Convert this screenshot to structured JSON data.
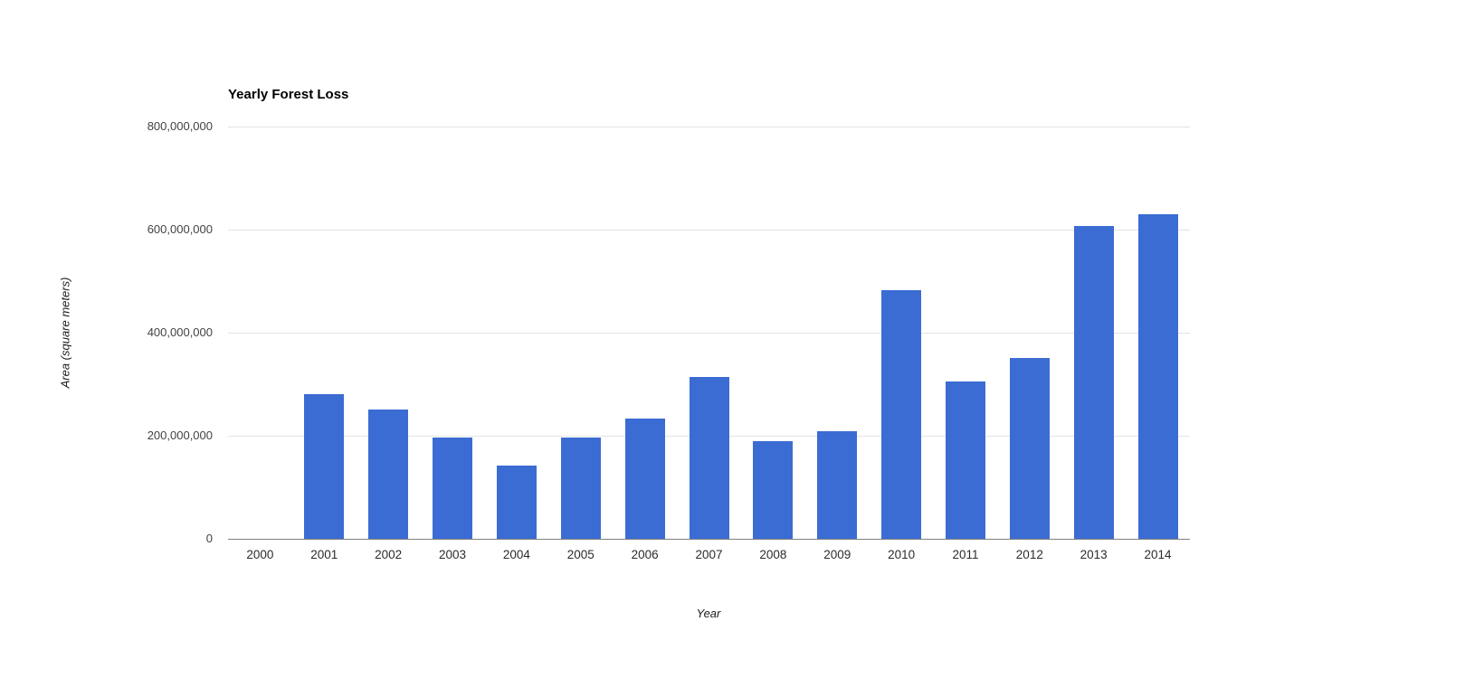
{
  "chart_data": {
    "type": "bar",
    "title": "Yearly Forest Loss",
    "xlabel": "Year",
    "ylabel": "Area (square meters)",
    "categories": [
      "2000",
      "2001",
      "2002",
      "2003",
      "2004",
      "2005",
      "2006",
      "2007",
      "2008",
      "2009",
      "2010",
      "2011",
      "2012",
      "2013",
      "2014"
    ],
    "values": [
      0,
      280000000,
      251000000,
      196000000,
      143000000,
      196000000,
      233000000,
      314000000,
      189000000,
      208000000,
      482000000,
      305000000,
      351000000,
      607000000,
      630000000
    ],
    "ylim": [
      0,
      800000000
    ],
    "yticks": [
      {
        "value": 0,
        "label": "0"
      },
      {
        "value": 200000000,
        "label": "200,000,000"
      },
      {
        "value": 400000000,
        "label": "400,000,000"
      },
      {
        "value": 600000000,
        "label": "600,000,000"
      },
      {
        "value": 800000000,
        "label": "800,000,000"
      }
    ],
    "grid": true,
    "legend_position": "none",
    "colors": {
      "bar": "#3b6cd3",
      "gridline": "#e3e3e3",
      "baseline": "#808080",
      "tick_label": "#424242",
      "title": "#000000"
    }
  }
}
